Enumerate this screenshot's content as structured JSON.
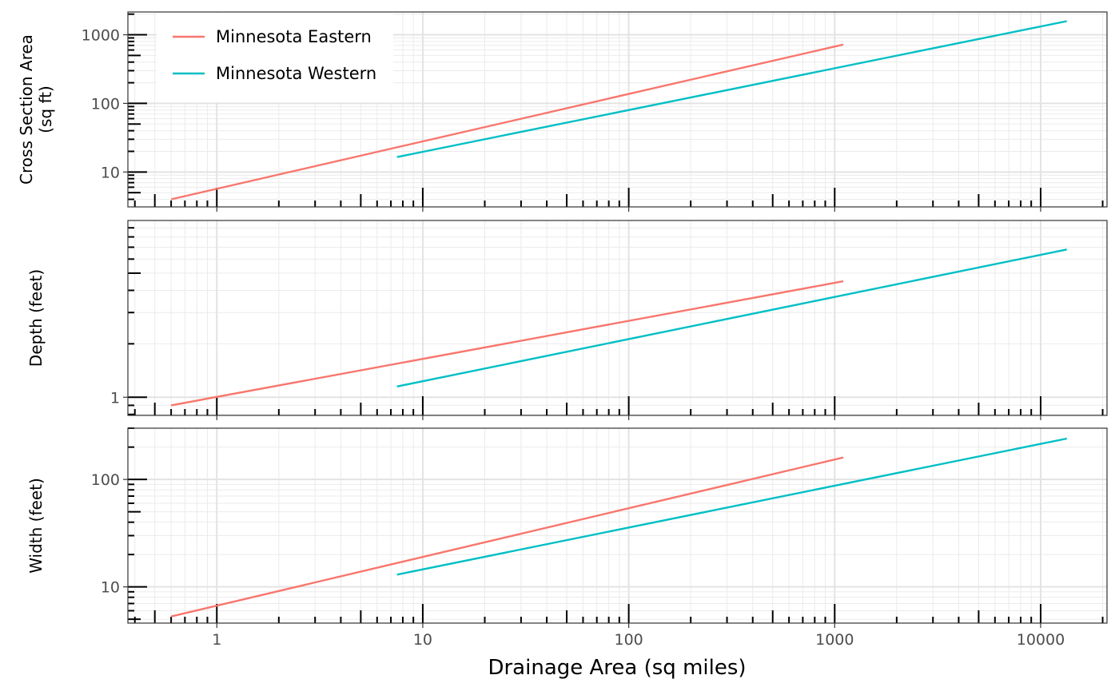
{
  "chart_data": {
    "type": "line",
    "xlabel": "Drainage Area (sq miles)",
    "x_scale": "log",
    "x_ticks": [
      1,
      10,
      100,
      1000,
      10000
    ],
    "x_tick_labels": [
      "1",
      "10",
      "100",
      "1000",
      "10000"
    ],
    "xlim": [
      0.37,
      21000
    ],
    "grid": true,
    "legend": {
      "placement": "top-left",
      "entries": [
        {
          "name": "Minnesota Eastern",
          "color": "#F8766D"
        },
        {
          "name": "Minnesota Western",
          "color": "#00BFC4"
        }
      ]
    },
    "panels": [
      {
        "ylabel": [
          "Cross Section Area",
          "(sq ft)"
        ],
        "y_scale": "log",
        "ylim": [
          3.1,
          2150
        ],
        "y_ticks": [
          10,
          100,
          1000
        ],
        "y_tick_labels": [
          "10",
          "100",
          "1000"
        ],
        "series": [
          {
            "name": "Minnesota Eastern",
            "x": [
              0.6,
              1100
            ],
            "y": [
              4.0,
              720
            ]
          },
          {
            "name": "Minnesota Western",
            "x": [
              7.5,
              13400
            ],
            "y": [
              16.5,
              1580
            ]
          }
        ]
      },
      {
        "ylabel": [
          "Depth (feet)"
        ],
        "y_scale": "log",
        "ylim": [
          0.79,
          9.9
        ],
        "y_ticks": [
          1
        ],
        "y_tick_labels": [
          "1"
        ],
        "series": [
          {
            "name": "Minnesota Eastern",
            "x": [
              0.6,
              1100
            ],
            "y": [
              0.9,
              4.5
            ]
          },
          {
            "name": "Minnesota Western",
            "x": [
              7.5,
              13400
            ],
            "y": [
              1.15,
              6.8
            ]
          }
        ]
      },
      {
        "ylabel": [
          "Width (feet)"
        ],
        "y_scale": "log",
        "ylim": [
          4.6,
          300
        ],
        "y_ticks": [
          10,
          100
        ],
        "y_tick_labels": [
          "10",
          "100"
        ],
        "series": [
          {
            "name": "Minnesota Eastern",
            "x": [
              0.6,
              1100
            ],
            "y": [
              5.3,
              160
            ]
          },
          {
            "name": "Minnesota Western",
            "x": [
              7.5,
              13400
            ],
            "y": [
              13.0,
              240
            ]
          }
        ]
      }
    ]
  }
}
